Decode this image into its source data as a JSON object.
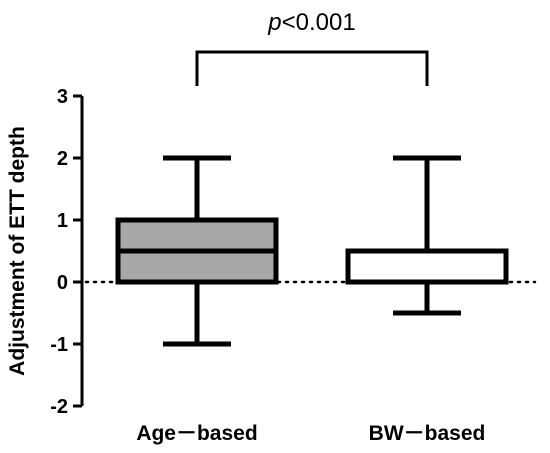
{
  "chart_data": {
    "type": "box",
    "title": "",
    "xlabel": "",
    "ylabel": "Adjustment of ETT depth",
    "ylim": [
      -2,
      3
    ],
    "yticks": [
      3,
      2,
      1,
      0,
      -1,
      -2
    ],
    "ytick_labels": [
      "3",
      "2",
      "1",
      "0",
      "-1",
      "-2"
    ],
    "categories": [
      "Age－based",
      "BW－based"
    ],
    "boxes": [
      {
        "min": -1,
        "q1": 0,
        "median": 0.5,
        "q3": 1,
        "max": 2,
        "fill": "#a8a8a8"
      },
      {
        "min": -0.5,
        "q1": 0,
        "median": 0,
        "q3": 0.5,
        "max": 2,
        "fill": "#ffffff"
      }
    ],
    "reference_line": {
      "y": 0,
      "style": "dotted"
    },
    "annotation": {
      "p": "p",
      "rest": "<0.001"
    }
  }
}
